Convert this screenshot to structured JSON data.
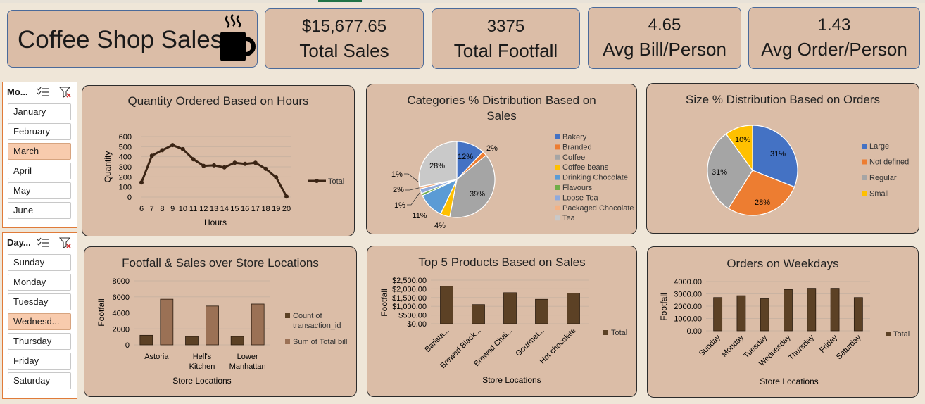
{
  "header": {
    "title": "Coffee Shop Sales",
    "icon": "coffee-cup-icon",
    "kpis": [
      {
        "value": "$15,677.65",
        "label": "Total Sales"
      },
      {
        "value": "3375",
        "label": "Total Footfall"
      },
      {
        "value": "4.65",
        "label": "Avg Bill/Person"
      },
      {
        "value": "1.43",
        "label": "Avg Order/Person"
      }
    ]
  },
  "slicers": {
    "month": {
      "title": "Mo...",
      "items": [
        "January",
        "February",
        "March",
        "April",
        "May",
        "June"
      ],
      "selected": "March"
    },
    "day": {
      "title": "Day...",
      "items": [
        "Sunday",
        "Monday",
        "Tuesday",
        "Wednesd...",
        "Thursday",
        "Friday",
        "Saturday"
      ],
      "selected": "Wednesd..."
    }
  },
  "colors": {
    "panel": "#dbbda7",
    "line": "#3a2414",
    "bar_dark": "#5c4125",
    "bar_light": "#9b7155",
    "slicer_selected": "#f8cbad",
    "slicer_border": "#e07b39"
  },
  "chart_data": [
    {
      "id": "hours",
      "type": "line",
      "title": "Quantity Ordered Based on Hours",
      "xlabel": "Hours",
      "ylabel": "Quantity",
      "x": [
        6,
        7,
        8,
        9,
        10,
        11,
        12,
        13,
        14,
        15,
        16,
        17,
        18,
        19,
        20
      ],
      "series": [
        {
          "name": "Total",
          "values": [
            145,
            410,
            465,
            515,
            475,
            375,
            310,
            315,
            295,
            340,
            330,
            340,
            280,
            195,
            5
          ]
        }
      ],
      "ylim": [
        0,
        600
      ],
      "yticks": [
        0,
        100,
        200,
        300,
        400,
        500,
        600
      ],
      "legend": "right"
    },
    {
      "id": "categories",
      "type": "pie",
      "title": "Categories % Distribution Based on Sales",
      "labels": [
        "Bakery",
        "Branded",
        "Coffee",
        "Coffee beans",
        "Drinking Chocolate",
        "Flavours",
        "Loose Tea",
        "Packaged Chocolate",
        "Tea"
      ],
      "values": [
        12,
        2,
        39,
        4,
        11,
        1,
        2,
        1,
        28
      ],
      "data_labels": [
        "12%",
        "2%",
        "39%",
        "4%",
        "11%",
        "1%",
        "2%",
        "1%",
        "28%"
      ],
      "colors": [
        "#4472c4",
        "#ed7d31",
        "#a5a5a5",
        "#ffc000",
        "#5b9bd5",
        "#70ad47",
        "#8faadc",
        "#f4b183",
        "#c9c9c9"
      ],
      "legend": "right"
    },
    {
      "id": "sizes",
      "type": "pie",
      "title": "Size % Distribution Based on Orders",
      "labels": [
        "Large",
        "Not defined",
        "Regular",
        "Small"
      ],
      "values": [
        31,
        28,
        31,
        10
      ],
      "data_labels": [
        "31%",
        "28%",
        "31%",
        "10%"
      ],
      "colors": [
        "#4472c4",
        "#ed7d31",
        "#a5a5a5",
        "#ffc000"
      ],
      "legend": "right"
    },
    {
      "id": "locations",
      "type": "bar",
      "title": "Footfall & Sales over Store Locations",
      "xlabel": "Store Locations",
      "ylabel": "Footfall",
      "categories": [
        "Astoria",
        "Hell's Kitchen",
        "Lower Manhattan"
      ],
      "series": [
        {
          "name": "Count of transaction_id",
          "values": [
            1200,
            1050,
            1050
          ]
        },
        {
          "name": "Sum of Total bill",
          "values": [
            5700,
            4850,
            5100
          ]
        }
      ],
      "ylim": [
        0,
        8000
      ],
      "yticks": [
        "0",
        "2000",
        "4000",
        "6000",
        "8000"
      ],
      "legend": "right"
    },
    {
      "id": "products",
      "type": "bar",
      "title": "Top 5 Products Based on Sales",
      "xlabel": "Store Locations",
      "ylabel": "Footfall",
      "categories": [
        "Barista...",
        "Brewed Black...",
        "Brewed Chai...",
        "Gourmet...",
        "Hot chocolate"
      ],
      "series": [
        {
          "name": "Total",
          "values": [
            2150,
            1100,
            1780,
            1400,
            1750
          ]
        }
      ],
      "ylim": [
        0,
        2500
      ],
      "yticks": [
        "$0.00",
        "$500.00",
        "$1,000.00",
        "$1,500.00",
        "$2,000.00",
        "$2,500.00"
      ],
      "legend": "right"
    },
    {
      "id": "weekdays",
      "type": "bar",
      "title": "Orders on Weekdays",
      "xlabel": "Store Locations",
      "ylabel": "Footfall",
      "categories": [
        "Sunday",
        "Monday",
        "Tuesday",
        "Wednesday",
        "Thursday",
        "Friday",
        "Saturday"
      ],
      "series": [
        {
          "name": "Total",
          "values": [
            2700,
            2850,
            2600,
            3350,
            3450,
            3450,
            2700
          ]
        }
      ],
      "ylim": [
        0,
        4000
      ],
      "yticks": [
        "0.00",
        "1000.00",
        "2000.00",
        "3000.00",
        "4000.00"
      ],
      "legend": "right"
    }
  ]
}
